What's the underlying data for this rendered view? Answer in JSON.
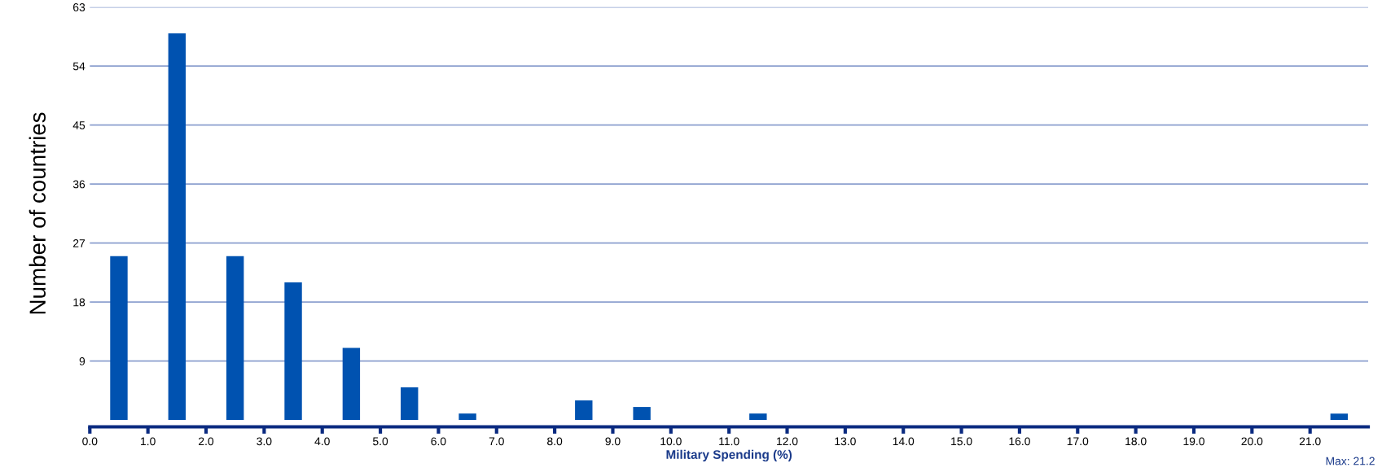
{
  "chart_data": {
    "type": "histogram",
    "xlabel": "Military Spending (%)",
    "ylabel": "Number of countries",
    "bins": [
      0,
      1,
      2,
      3,
      4,
      5,
      6,
      7,
      8,
      9,
      10,
      11,
      12,
      13,
      14,
      15,
      16,
      17,
      18,
      19,
      20,
      21,
      22
    ],
    "values": [
      25,
      59,
      25,
      21,
      11,
      5,
      1,
      0,
      3,
      2,
      0,
      1,
      0,
      0,
      0,
      0,
      0,
      0,
      0,
      0,
      0,
      1
    ],
    "color": "#0052b0",
    "xlim": [
      0,
      22
    ],
    "xticks": [
      {
        "value": 0,
        "label": "0.0"
      },
      {
        "value": 1,
        "label": "1.0"
      },
      {
        "value": 2,
        "label": "2.0"
      },
      {
        "value": 3,
        "label": "3.0"
      },
      {
        "value": 4,
        "label": "4.0"
      },
      {
        "value": 5,
        "label": "5.0"
      },
      {
        "value": 6,
        "label": "6.0"
      },
      {
        "value": 7,
        "label": "7.0"
      },
      {
        "value": 8,
        "label": "8.0"
      },
      {
        "value": 9,
        "label": "9.0"
      },
      {
        "value": 10,
        "label": "10.0"
      },
      {
        "value": 11,
        "label": "11.0"
      },
      {
        "value": 12,
        "label": "12.0"
      },
      {
        "value": 13,
        "label": "13.0"
      },
      {
        "value": 14,
        "label": "14.0"
      },
      {
        "value": 15,
        "label": "15.0"
      },
      {
        "value": 16,
        "label": "16.0"
      },
      {
        "value": 17,
        "label": "17.0"
      },
      {
        "value": 18,
        "label": "18.0"
      },
      {
        "value": 19,
        "label": "19.0"
      },
      {
        "value": 20,
        "label": "20.0"
      },
      {
        "value": 21,
        "label": "21.0"
      }
    ],
    "ylim": [
      0,
      63
    ],
    "yticks": [
      9,
      18,
      27,
      36,
      45,
      54,
      63
    ],
    "grid": "y",
    "annotations": [
      "Max: 21.2"
    ]
  }
}
